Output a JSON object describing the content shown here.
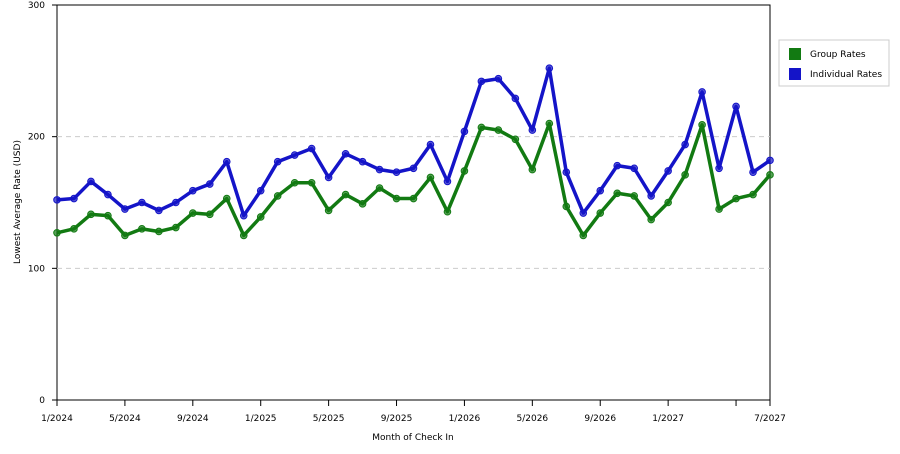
{
  "chart_data": {
    "type": "line",
    "x_label": "Month of Check In",
    "y_label": "Lowest Average Rate (USD)",
    "categories": [
      "1/2024",
      null,
      null,
      null,
      "5/2024",
      null,
      null,
      null,
      "9/2024",
      null,
      null,
      null,
      "1/2025",
      null,
      null,
      null,
      "5/2025",
      null,
      null,
      null,
      "9/2025",
      null,
      null,
      null,
      "1/2026",
      null,
      null,
      null,
      "5/2026",
      null,
      null,
      null,
      "9/2026",
      null,
      null,
      null,
      "1/2027",
      null,
      null,
      null,
      null,
      null,
      "7/2027"
    ],
    "series": [
      {
        "name": "Group Rates",
        "color": "#127a12",
        "values": [
          127,
          130,
          141,
          140,
          125,
          130,
          128,
          131,
          142,
          141,
          153,
          125,
          139,
          155,
          165,
          165,
          144,
          156,
          149,
          161,
          153,
          153,
          169,
          143,
          174,
          207,
          205,
          198,
          175,
          210,
          147,
          125,
          142,
          157,
          155,
          137,
          150,
          171,
          209,
          145,
          153,
          156,
          171
        ]
      },
      {
        "name": "Individual Rates",
        "color": "#1414c8",
        "values": [
          152,
          153,
          166,
          156,
          145,
          150,
          144,
          150,
          159,
          164,
          181,
          140,
          159,
          181,
          186,
          191,
          169,
          187,
          181,
          175,
          173,
          176,
          194,
          166,
          204,
          242,
          244,
          229,
          205,
          252,
          173,
          142,
          159,
          178,
          176,
          155,
          174,
          194,
          234,
          176,
          223,
          173,
          182
        ]
      }
    ],
    "ylim": [
      0,
      300
    ],
    "yticks": [
      0,
      100,
      200,
      300
    ],
    "grid": true,
    "legend": "right"
  }
}
